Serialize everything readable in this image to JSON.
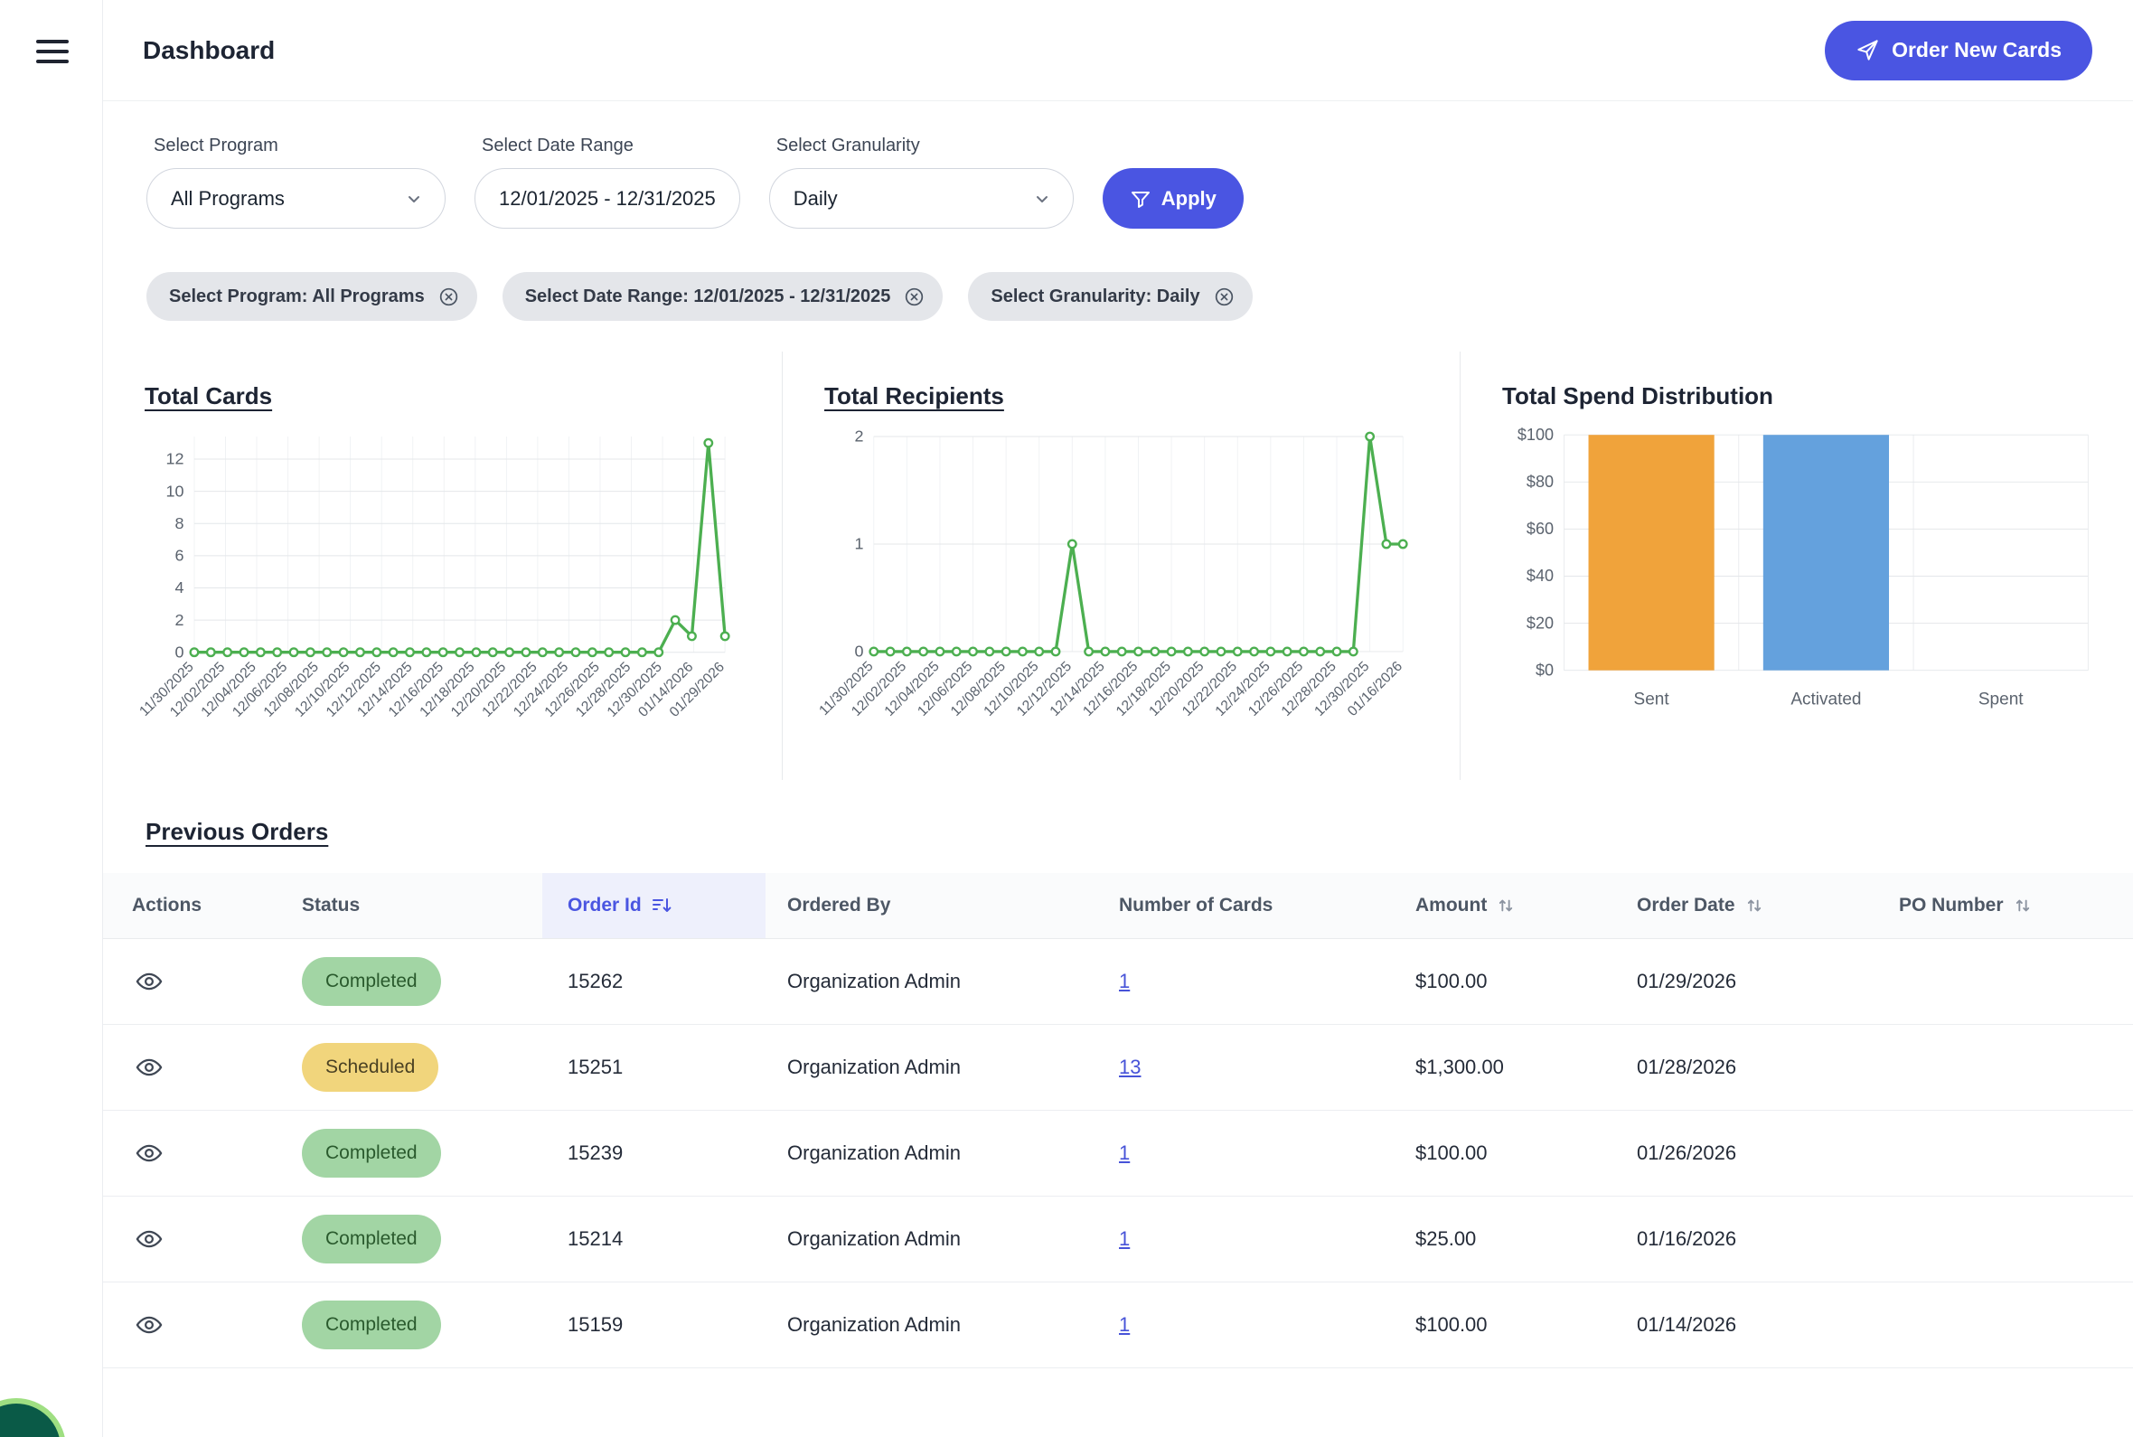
{
  "header": {
    "title": "Dashboard",
    "order_new_cards": "Order New Cards"
  },
  "filters": {
    "program_label": "Select Program",
    "program_value": "All Programs",
    "date_label": "Select Date Range",
    "date_value": "12/01/2025 - 12/31/2025",
    "granularity_label": "Select Granularity",
    "granularity_value": "Daily",
    "apply_label": "Apply",
    "chips": [
      "Select Program: All Programs",
      "Select Date Range: 12/01/2025 - 12/31/2025",
      "Select Granularity: Daily"
    ]
  },
  "sections": {
    "total_cards": "Total Cards",
    "total_recipients": "Total Recipients",
    "total_spend": "Total Spend Distribution",
    "previous_orders": "Previous Orders"
  },
  "chart_data": [
    {
      "type": "line",
      "title": "Total Cards",
      "x_labels": [
        "11/30/2025",
        "12/02/2025",
        "12/04/2025",
        "12/06/2025",
        "12/08/2025",
        "12/10/2025",
        "12/12/2025",
        "12/14/2025",
        "12/16/2025",
        "12/18/2025",
        "12/20/2025",
        "12/22/2025",
        "12/24/2025",
        "12/26/2025",
        "12/28/2025",
        "12/30/2025",
        "01/14/2026",
        "01/29/2026"
      ],
      "values": [
        0,
        0,
        0,
        0,
        0,
        0,
        0,
        0,
        0,
        0,
        0,
        0,
        0,
        0,
        0,
        0,
        0,
        0,
        0,
        0,
        0,
        0,
        0,
        0,
        0,
        0,
        0,
        0,
        0,
        2,
        1,
        13,
        1
      ],
      "yticks": [
        0,
        2,
        4,
        6,
        8,
        10,
        12
      ],
      "ylim": [
        0,
        13.4
      ],
      "ymax": 13.4,
      "color": "#4caf50",
      "grid": true,
      "legend": "none"
    },
    {
      "type": "line",
      "title": "Total Recipients",
      "x_labels": [
        "11/30/2025",
        "12/02/2025",
        "12/04/2025",
        "12/06/2025",
        "12/08/2025",
        "12/10/2025",
        "12/12/2025",
        "12/14/2025",
        "12/16/2025",
        "12/18/2025",
        "12/20/2025",
        "12/22/2025",
        "12/24/2025",
        "12/26/2025",
        "12/28/2025",
        "12/30/2025",
        "01/16/2026"
      ],
      "values": [
        0,
        0,
        0,
        0,
        0,
        0,
        0,
        0,
        0,
        0,
        0,
        0,
        1,
        0,
        0,
        0,
        0,
        0,
        0,
        0,
        0,
        0,
        0,
        0,
        0,
        0,
        0,
        0,
        0,
        0,
        2,
        1,
        1
      ],
      "yticks": [
        0,
        1,
        2
      ],
      "ylim": [
        0,
        2
      ],
      "ymax": 2,
      "color": "#4caf50",
      "grid": true,
      "legend": "none"
    },
    {
      "type": "bar",
      "title": "Total Spend Distribution",
      "categories": [
        "Sent",
        "Activated",
        "Spent"
      ],
      "values": [
        100,
        100,
        0
      ],
      "colors": [
        "#f0a33b",
        "#64a1dd",
        "#cccccc"
      ],
      "yticks": [
        0,
        20,
        40,
        60,
        80,
        100
      ],
      "ylim": [
        0,
        100
      ],
      "ymax": 100,
      "ytick_prefix": "$",
      "grid": true,
      "legend": "none"
    }
  ],
  "table": {
    "columns": [
      "Actions",
      "Status",
      "Order Id",
      "Ordered By",
      "Number of Cards",
      "Amount",
      "Order Date",
      "PO Number"
    ],
    "rows": [
      {
        "status": "Completed",
        "order_id": "15262",
        "ordered_by": "Organization Admin",
        "cards": "1",
        "amount": "$100.00",
        "date": "01/29/2026",
        "po": ""
      },
      {
        "status": "Scheduled",
        "order_id": "15251",
        "ordered_by": "Organization Admin",
        "cards": "13",
        "amount": "$1,300.00",
        "date": "01/28/2026",
        "po": ""
      },
      {
        "status": "Completed",
        "order_id": "15239",
        "ordered_by": "Organization Admin",
        "cards": "1",
        "amount": "$100.00",
        "date": "01/26/2026",
        "po": ""
      },
      {
        "status": "Completed",
        "order_id": "15214",
        "ordered_by": "Organization Admin",
        "cards": "1",
        "amount": "$25.00",
        "date": "01/16/2026",
        "po": ""
      },
      {
        "status": "Completed",
        "order_id": "15159",
        "ordered_by": "Organization Admin",
        "cards": "1",
        "amount": "$100.00",
        "date": "01/14/2026",
        "po": ""
      }
    ]
  },
  "colors": {
    "primary": "#4a55e2",
    "line_green": "#4caf50",
    "bar_orange": "#f0a33b",
    "bar_blue": "#64a1dd",
    "completed_bg": "#a2d5a4",
    "scheduled_bg": "#f1d57c"
  }
}
